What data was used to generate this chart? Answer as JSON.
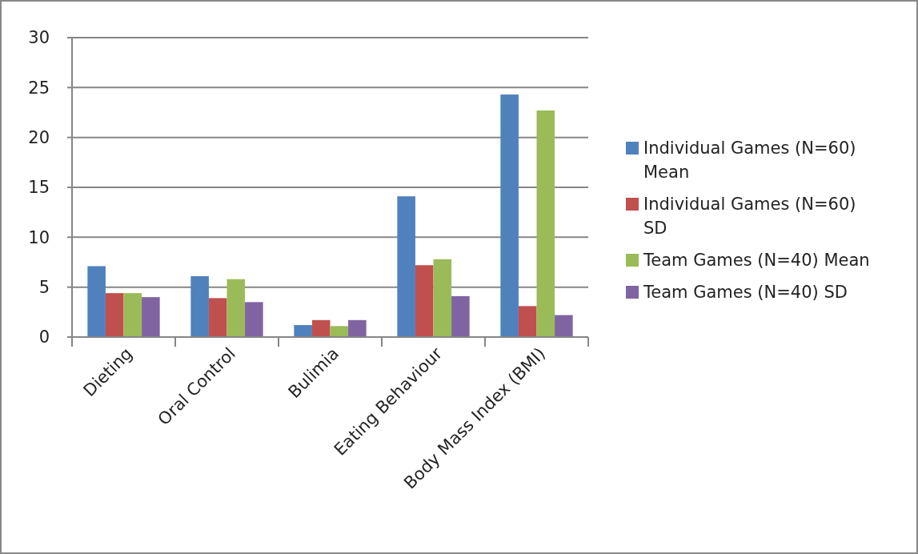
{
  "chart_data": {
    "type": "bar",
    "categories": [
      "Dieting",
      "Oral Control",
      "Bulimia",
      "Eating Behaviour",
      "Body Mass Index (BMI)"
    ],
    "series": [
      {
        "name": "Individual Games (N=60) Mean",
        "color": "#4f81bd",
        "values": [
          7.1,
          6.1,
          1.2,
          14.1,
          24.3
        ]
      },
      {
        "name": "Individual Games (N=60) SD",
        "color": "#c0504d",
        "values": [
          4.4,
          3.9,
          1.7,
          7.2,
          3.1
        ]
      },
      {
        "name": "Team Games (N=40) Mean",
        "color": "#9bbb59",
        "values": [
          4.4,
          5.8,
          1.1,
          7.8,
          22.7
        ]
      },
      {
        "name": "Team Games (N=40) SD",
        "color": "#8064a2",
        "values": [
          4.0,
          3.5,
          1.7,
          4.1,
          2.2
        ]
      }
    ],
    "ylim": [
      0,
      30
    ],
    "yticks": [
      0,
      5,
      10,
      15,
      20,
      25,
      30
    ],
    "grid": "y",
    "legend": "right"
  }
}
